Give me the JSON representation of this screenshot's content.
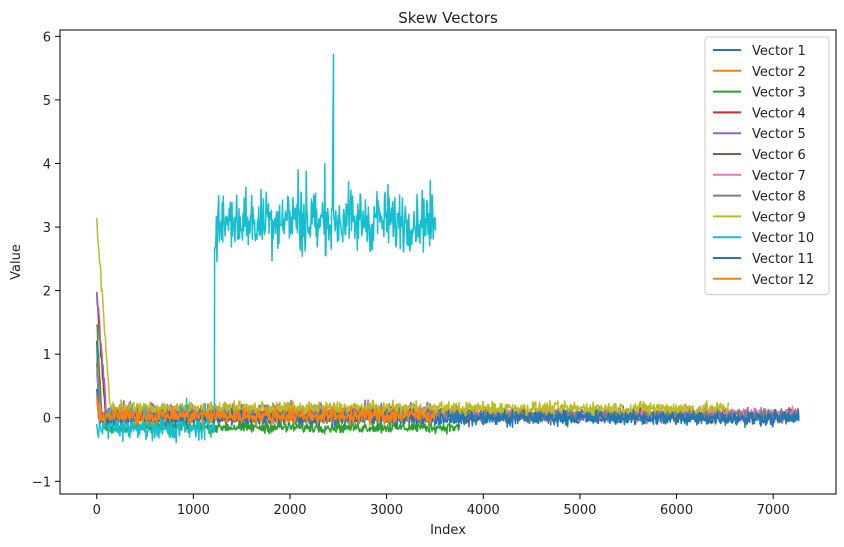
{
  "chart_data": {
    "type": "line",
    "title": "Skew Vectors",
    "xlabel": "Index",
    "ylabel": "Value",
    "xlim": [
      -380,
      7650
    ],
    "ylim": [
      -1.2,
      6.1
    ],
    "xticks": [
      0,
      1000,
      2000,
      3000,
      4000,
      5000,
      6000,
      7000
    ],
    "yticks": [
      -1,
      0,
      1,
      2,
      3,
      4,
      5,
      6
    ],
    "grid": false,
    "legend_position": "upper right",
    "series": [
      {
        "name": "Vector 1",
        "color": "#1f77b4",
        "length": 7270,
        "spike": {
          "start": 1.2,
          "decay_len": 20
        },
        "base": 0.0,
        "amplitude": 0.18
      },
      {
        "name": "Vector 2",
        "color": "#ff7f0e",
        "length": 3500,
        "spike": {
          "start": 0.3,
          "decay_len": 20
        },
        "base": 0.05,
        "amplitude": 0.18
      },
      {
        "name": "Vector 3",
        "color": "#2ca02c",
        "length": 3760,
        "spike": {
          "start": 1.5,
          "decay_len": 60
        },
        "base": -0.15,
        "amplitude": 0.13
      },
      {
        "name": "Vector 4",
        "color": "#d62728",
        "length": 4200,
        "spike": {
          "start": 1.9,
          "decay_len": 90
        },
        "base": 0.05,
        "amplitude": 0.15
      },
      {
        "name": "Vector 5",
        "color": "#9467bd",
        "length": 3510,
        "spike": {
          "start": 2.0,
          "decay_len": 100
        },
        "base": 0.12,
        "amplitude": 0.18
      },
      {
        "name": "Vector 6",
        "color": "#8c564b",
        "length": 7260,
        "spike": {
          "start": 0.8,
          "decay_len": 50
        },
        "base": 0.05,
        "amplitude": 0.15
      },
      {
        "name": "Vector 7",
        "color": "#e377c2",
        "length": 7260,
        "spike": {
          "start": 0.7,
          "decay_len": 50
        },
        "base": 0.05,
        "amplitude": 0.16
      },
      {
        "name": "Vector 8",
        "color": "#7f7f7f",
        "length": 7260,
        "spike": {
          "start": 0.9,
          "decay_len": 50
        },
        "base": 0.05,
        "amplitude": 0.15
      },
      {
        "name": "Vector 9",
        "color": "#bcbd22",
        "length": 6540,
        "spike": {
          "start": 3.1,
          "decay_len": 140
        },
        "base": 0.15,
        "amplitude": 0.15
      },
      {
        "name": "Vector 10",
        "color": "#17becf",
        "length": 3510,
        "segments": [
          {
            "x_start": 0,
            "x_end": 1220,
            "mean": -0.15,
            "amplitude": 0.35
          },
          {
            "x_start": 1220,
            "x_end": 3510,
            "mean": 3.1,
            "amplitude": 0.75
          }
        ],
        "peak": {
          "x": 2450,
          "y": 5.72
        }
      },
      {
        "name": "Vector 11",
        "color": "#1f77b4",
        "length": 7270,
        "spike": {
          "start": 0.4,
          "decay_len": 20
        },
        "base": 0.0,
        "amplitude": 0.16
      },
      {
        "name": "Vector 12",
        "color": "#ff7f0e",
        "length": 3500,
        "spike": {
          "start": 0.3,
          "decay_len": 20
        },
        "base": 0.03,
        "amplitude": 0.19
      }
    ]
  }
}
